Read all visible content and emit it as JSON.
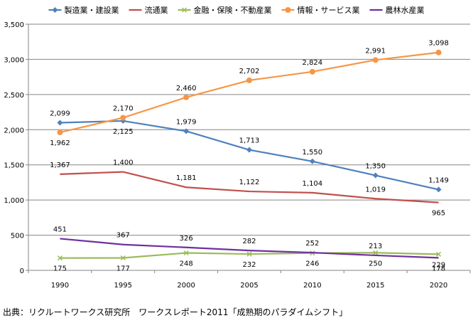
{
  "chart_data": {
    "type": "line",
    "x": [
      "1990",
      "1995",
      "2000",
      "2005",
      "2010",
      "2015",
      "2020"
    ],
    "ylim": [
      0,
      3500
    ],
    "yticks": [
      0,
      500,
      1000,
      1500,
      2000,
      2500,
      3000,
      3500
    ],
    "ytick_labels": [
      "0",
      "500",
      "1,000",
      "1,500",
      "2,000",
      "2,500",
      "3,000",
      "3,500"
    ],
    "grid": true,
    "legend_position": "top",
    "series": [
      {
        "name": "製造業・建設業",
        "color": "#4f81bd",
        "marker": "diamond",
        "values": [
          2099,
          2125,
          1979,
          1713,
          1550,
          1350,
          1149
        ],
        "labels": [
          "2,099",
          "2,125",
          "1,979",
          "1,713",
          "1,550",
          "1,350",
          "1,149"
        ]
      },
      {
        "name": "流通業",
        "color": "#c0504d",
        "marker": "none",
        "values": [
          1367,
          1400,
          1181,
          1122,
          1104,
          1019,
          965
        ],
        "labels": [
          "1,367",
          "1,400",
          "1,181",
          "1,122",
          "1,104",
          "1,019",
          "965"
        ]
      },
      {
        "name": "金融・保険・不動産業",
        "color": "#9bbb59",
        "marker": "x",
        "values": [
          175,
          177,
          248,
          232,
          246,
          250,
          229
        ],
        "labels": [
          "175",
          "177",
          "248",
          "232",
          "246",
          "250",
          "229"
        ]
      },
      {
        "name": "情報・サービス業",
        "color": "#f79646",
        "marker": "circle",
        "values": [
          1962,
          2170,
          2460,
          2702,
          2824,
          2991,
          3098
        ],
        "labels": [
          "1,962",
          "2,170",
          "2,460",
          "2,702",
          "2,824",
          "2,991",
          "3,098"
        ]
      },
      {
        "name": "農林水産業",
        "color": "#7030a0",
        "marker": "none",
        "values": [
          451,
          367,
          326,
          282,
          252,
          213,
          178
        ],
        "labels": [
          "451",
          "367",
          "326",
          "282",
          "252",
          "213",
          "178"
        ]
      }
    ],
    "source": "出典：リクルートワークス研究所　ワークスレポート2011「成熟期のパラダイムシフト」"
  }
}
